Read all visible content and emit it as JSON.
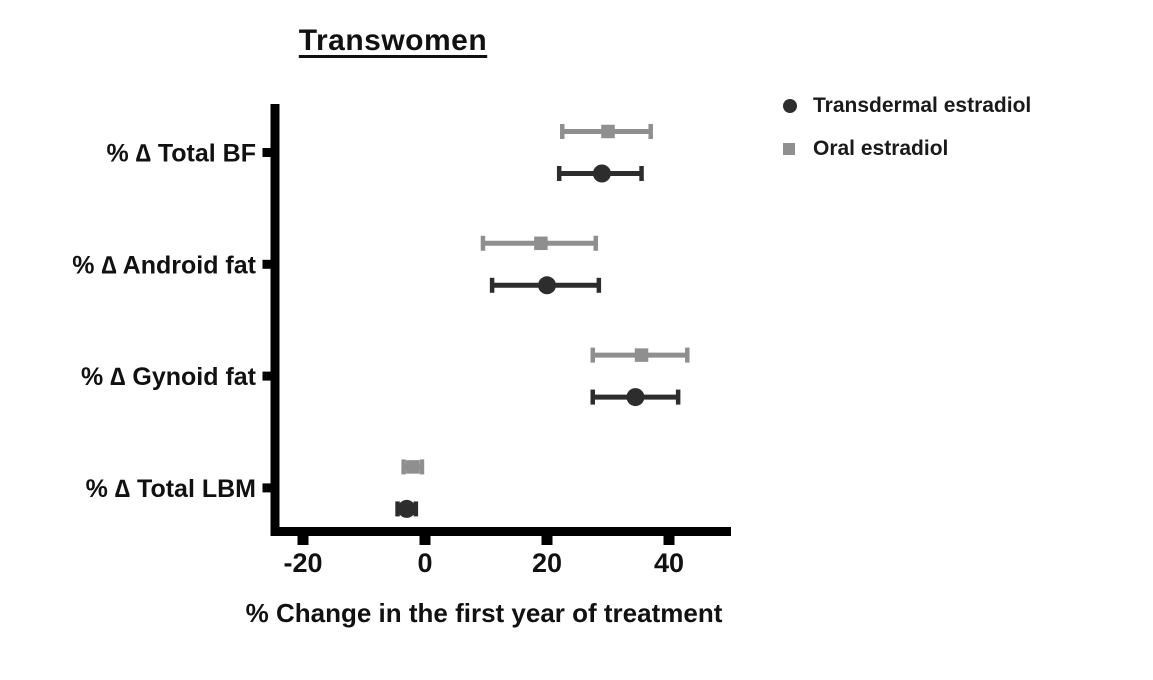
{
  "chart_data": {
    "type": "scatter",
    "subtype": "horizontal-dot-plot-with-error-bars",
    "title": "Transwomen",
    "xlabel": "% Change in the first year of treatment",
    "ylabel": "",
    "categories": [
      "% ∆ Total BF",
      "% ∆ Android fat",
      "% ∆ Gynoid fat",
      "% ∆ Total LBM"
    ],
    "xlim": [
      -25,
      50
    ],
    "xticks": [
      -20,
      0,
      20,
      40
    ],
    "grid": false,
    "legend_position": "top-right",
    "axis_color": "#000000",
    "series": [
      {
        "name": "Transdermal estradiol",
        "marker": "circle",
        "color": "#2d2d2d",
        "row_position": "bottom",
        "values": [
          29,
          20,
          34.5,
          -3
        ],
        "ci_low": [
          22,
          11,
          27.5,
          -4.5
        ],
        "ci_high": [
          35.5,
          28.5,
          41.5,
          -1.5
        ]
      },
      {
        "name": "Oral estradiol",
        "marker": "square",
        "color": "#8f8f8f",
        "row_position": "top",
        "values": [
          30,
          19,
          35.5,
          -2
        ],
        "ci_low": [
          22.5,
          9.5,
          27.5,
          -3.5
        ],
        "ci_high": [
          37,
          28,
          43,
          -0.5
        ]
      }
    ]
  }
}
